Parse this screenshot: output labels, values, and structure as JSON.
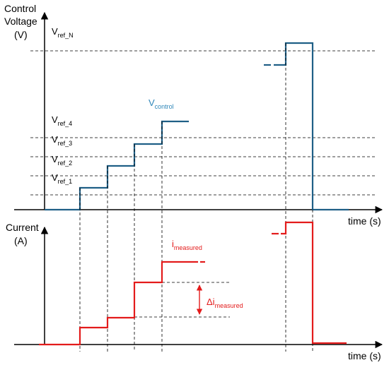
{
  "colors": {
    "axis": "#000000",
    "guide": "#000000",
    "voltage": "#1f5f86",
    "voltage_label": "#2e86b8",
    "current": "#e31b1b",
    "background": "#ffffff"
  },
  "voltage_panel": {
    "ylabel_line1": "Control",
    "ylabel_line2": "Voltage",
    "ylabel_line3": "(V)",
    "xlabel": "time (s)",
    "ref_labels": [
      {
        "main": "V",
        "sub": "ref_N"
      },
      {
        "main": "V",
        "sub": "ref_4"
      },
      {
        "main": "V",
        "sub": "ref_3"
      },
      {
        "main": "V",
        "sub": "ref_2"
      },
      {
        "main": "V",
        "sub": "ref_1"
      }
    ],
    "signal_label": {
      "main": "V",
      "sub": "control"
    }
  },
  "current_panel": {
    "ylabel_line1": "Current",
    "ylabel_line2": "(A)",
    "xlabel": "time (s)",
    "signal_label": {
      "main": "i",
      "sub": "measured"
    },
    "delta_label": {
      "main": "Δi",
      "sub": "measured"
    }
  }
}
